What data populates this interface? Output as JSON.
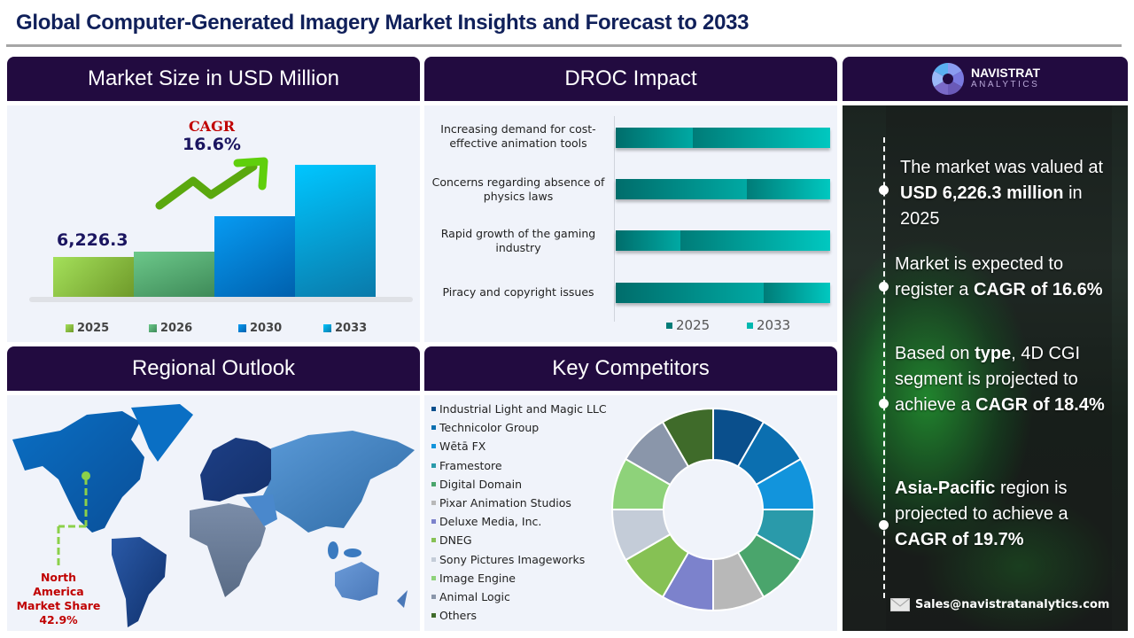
{
  "title": "Global Computer-Generated Imagery Market Insights and Forecast to 2033",
  "panels": {
    "market_size": "Market Size in USD Million",
    "droc": "DROC Impact",
    "regional": "Regional Outlook",
    "competitors": "Key Competitors"
  },
  "market_size": {
    "cagr_label": "CAGR",
    "cagr_value": "16.6%",
    "first_value_label": "6,226.3",
    "legend": [
      "2025",
      "2026",
      "2030",
      "2033"
    ],
    "colors": [
      "#8cc63f",
      "#5fb27a",
      "#0a86d8",
      "#11b6e8"
    ]
  },
  "droc": {
    "items": [
      "Increasing demand for cost-effective animation tools",
      "Concerns regarding absence of physics laws",
      "Rapid growth of the gaming industry",
      "Piracy and copyright issues"
    ],
    "legend": [
      "2025",
      "2033"
    ]
  },
  "regional": {
    "callout_line1": "North",
    "callout_line2": "America",
    "callout_line3": "Market Share",
    "callout_value": "42.9%"
  },
  "competitors": {
    "items": [
      {
        "name": "Industrial Light and Magic LLC",
        "color": "#0a4f8c"
      },
      {
        "name": "Technicolor Group",
        "color": "#0b6fb0"
      },
      {
        "name": "Wētā FX",
        "color": "#1294dc"
      },
      {
        "name": "Framestore",
        "color": "#2a9aaa"
      },
      {
        "name": "Digital Domain",
        "color": "#4aa56c"
      },
      {
        "name": "Pixar Animation Studios",
        "color": "#b8b8b8"
      },
      {
        "name": "Deluxe Media, Inc.",
        "color": "#7c82cc"
      },
      {
        "name": "DNEG",
        "color": "#86c154"
      },
      {
        "name": "Sony Pictures Imageworks",
        "color": "#c4ccd8"
      },
      {
        "name": "Image Engine",
        "color": "#8ed27a"
      },
      {
        "name": "Animal Logic",
        "color": "#8a96aa"
      },
      {
        "name": "Others",
        "color": "#3f6b2a"
      }
    ]
  },
  "brand": {
    "name": "NAVISTRAT",
    "sub": "ANALYTICS"
  },
  "facts": {
    "f1_a": "The market was valued at ",
    "f1_b": "USD 6,226.3 million",
    "f1_c": " in 2025",
    "f2_a": "Market is expected to register a ",
    "f2_b": "CAGR of 16.6%",
    "f3_a": "Based on ",
    "f3_b": "type",
    "f3_c": ", 4D CGI segment is projected to achieve a ",
    "f3_d": "CAGR of 18.4%",
    "f4_a": "Asia-Pacific",
    "f4_b": " region is projected to achieve a ",
    "f4_c": "CAGR of 19.7%"
  },
  "contact": {
    "email": "Sales@navistratanalytics.com"
  },
  "chart_data": [
    {
      "type": "bar",
      "title": "Market Size in USD Million",
      "categories": [
        "2025",
        "2026",
        "2030",
        "2033"
      ],
      "values": [
        6226.3,
        7260,
        13420,
        21300
      ],
      "labeled_values": {
        "2025": 6226.3
      },
      "annotations": [
        "CAGR 16.6%"
      ],
      "xlabel": "",
      "ylabel": "USD Million",
      "grid": false,
      "legend_position": "bottom"
    },
    {
      "type": "bar",
      "orientation": "horizontal-stacked",
      "title": "DROC Impact",
      "categories": [
        "Increasing demand for cost-effective animation tools",
        "Concerns regarding absence of physics laws",
        "Rapid growth of the gaming industry",
        "Piracy and copyright issues"
      ],
      "series": [
        {
          "name": "2025",
          "values": [
            36,
            61,
            30,
            69
          ]
        },
        {
          "name": "2033",
          "values": [
            64,
            39,
            70,
            31
          ]
        }
      ],
      "grid": false,
      "legend_position": "bottom"
    },
    {
      "type": "pie",
      "style": "donut",
      "title": "Key Competitors",
      "categories": [
        "Industrial Light and Magic LLC",
        "Technicolor Group",
        "Wētā FX",
        "Framestore",
        "Digital Domain",
        "Pixar Animation Studios",
        "Deluxe Media, Inc.",
        "DNEG",
        "Sony Pictures Imageworks",
        "Image Engine",
        "Animal Logic",
        "Others"
      ],
      "values": [
        8.33,
        8.33,
        8.33,
        8.33,
        8.33,
        8.33,
        8.33,
        8.33,
        8.33,
        8.33,
        8.33,
        8.33
      ],
      "legend_position": "left"
    }
  ]
}
